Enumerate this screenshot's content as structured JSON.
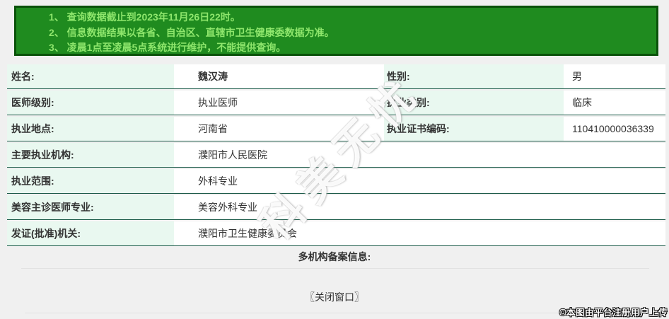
{
  "notice": {
    "items": [
      "1、 查询数据截止到2023年11月26日22时。",
      "2、 信息数据结果以各省、自治区、直辖市卫生健康委数据为准。",
      "3、 凌晨1点至凌晨5点系统进行维护，不能提供查询。"
    ]
  },
  "table": {
    "rows": [
      {
        "label1": "姓名:",
        "value1": "魏汉涛",
        "label2": "性别:",
        "value2": "男"
      },
      {
        "label1": "医师级别:",
        "value1": "执业医师",
        "label2": "执业类别:",
        "value2": "临床"
      },
      {
        "label1": "执业地点:",
        "value1": "河南省",
        "label2": "执业证书编码:",
        "value2": "110410000036339"
      },
      {
        "label1": "主要执业机构:",
        "value1": "濮阳市人民医院"
      },
      {
        "label1": "执业范围:",
        "value1": "外科专业"
      },
      {
        "label1": "美容主诊医师专业:",
        "value1": "美容外科专业"
      },
      {
        "label1": "发证(批准)机关:",
        "value1": "濮阳市卫生健康委员会"
      }
    ]
  },
  "footer": {
    "multi_org_label": "多机构备案信息:",
    "close_window_label": "〖关闭窗口〗",
    "copyright": "©本图由平台注册用户上传"
  },
  "watermark_text": "科美无忧",
  "colors": {
    "notice_bg": "#1f8b1f",
    "notice_border": "#0a520a",
    "notice_text": "#8ee66c",
    "label_cell_bg": "#e9f8f0",
    "row_border": "#1c5b49",
    "page_bg": "#f0f0f0"
  }
}
